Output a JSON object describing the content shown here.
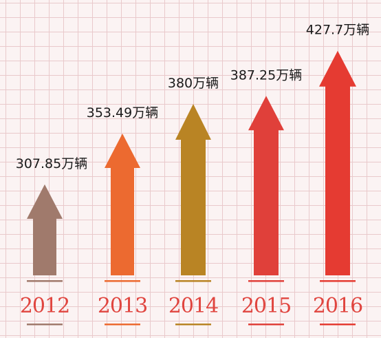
{
  "chart_data": {
    "type": "bar",
    "categories": [
      "2012",
      "2013",
      "2014",
      "2015",
      "2016"
    ],
    "values": [
      307.85,
      353.49,
      380,
      387.25,
      427.7
    ],
    "value_labels": [
      "307.85万辆",
      "353.49万辆",
      "380万辆",
      "387.25万辆",
      "427.7万辆"
    ],
    "colors": [
      "#a07a6c",
      "#ec6a30",
      "#b98424",
      "#e0403a",
      "#e53b32"
    ],
    "title": "",
    "xlabel": "",
    "ylabel": "",
    "ylim": [
      0,
      430
    ],
    "legend": "none"
  }
}
